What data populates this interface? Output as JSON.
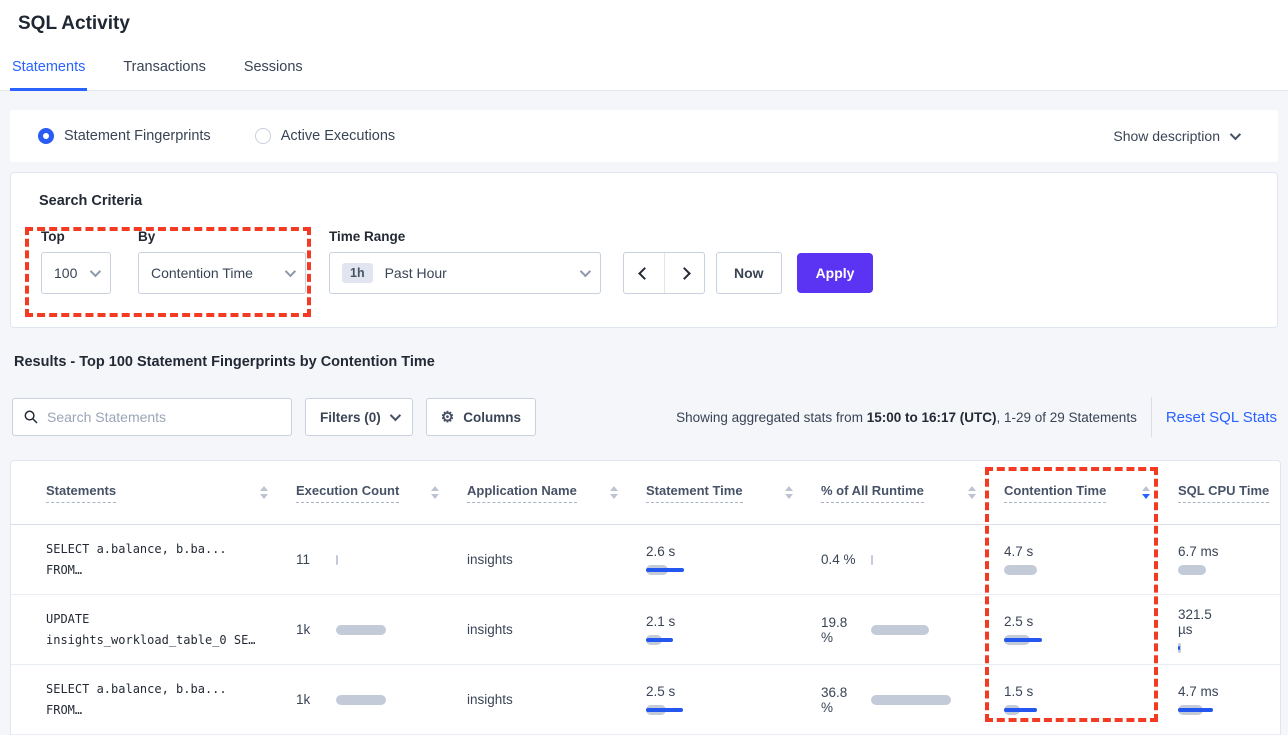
{
  "header": {
    "title": "SQL Activity",
    "tabs": [
      {
        "label": "Statements",
        "active": true
      },
      {
        "label": "Transactions",
        "active": false
      },
      {
        "label": "Sessions",
        "active": false
      }
    ]
  },
  "view_bar": {
    "fingerprints_label": "Statement Fingerprints",
    "fingerprints_selected": true,
    "active_executions_label": "Active Executions",
    "active_executions_selected": false,
    "show_description_label": "Show description"
  },
  "criteria": {
    "heading": "Search Criteria",
    "top_label": "Top",
    "top_value": "100",
    "by_label": "By",
    "by_value": "Contention Time",
    "time_range_label": "Time Range",
    "time_badge": "1h",
    "time_value": "Past Hour",
    "now_label": "Now",
    "apply_label": "Apply"
  },
  "results": {
    "heading": "Results - Top 100 Statement Fingerprints by Contention Time",
    "search_placeholder": "Search Statements",
    "filters_label": "Filters (0)",
    "columns_label": "Columns",
    "stats_prefix": "Showing aggregated stats from ",
    "stats_range": "15:00 to 16:17 (UTC)",
    "stats_suffix": ", 1-29 of 29 Statements",
    "reset_label": "Reset SQL Stats"
  },
  "table": {
    "columns": [
      "Statements",
      "Execution Count",
      "Application Name",
      "Statement Time",
      "% of All Runtime",
      "Contention Time",
      "SQL CPU Time"
    ],
    "sort": {
      "column": "Contention Time",
      "direction": "desc"
    },
    "rows": [
      {
        "statement": [
          "SELECT a.balance, b.ba...",
          "FROM…"
        ],
        "execution_count": "11",
        "application_name": "insights",
        "statement_time": "2.6 s",
        "percent_of_all_runtime": "0.4 %",
        "contention_time": "4.7 s",
        "sql_cpu_time": "6.7 ms",
        "bars": {
          "exec": 2,
          "stmt": 22,
          "stmt_line": 38,
          "pct": 2,
          "cont": 33,
          "cont_line": 0,
          "cpu": 28,
          "cpu_line": 0
        }
      },
      {
        "statement": [
          "UPDATE",
          "insights_workload_table_0 SE…"
        ],
        "execution_count": "1k",
        "application_name": "insights",
        "statement_time": "2.1 s",
        "percent_of_all_runtime": "19.8 %",
        "contention_time": "2.5 s",
        "sql_cpu_time": "321.5 µs",
        "bars": {
          "exec": 50,
          "stmt": 16,
          "stmt_line": 27,
          "pct": 58,
          "cont": 26,
          "cont_line": 38,
          "cpu": 3,
          "cpu_line": 2
        }
      },
      {
        "statement": [
          "SELECT a.balance, b.ba...",
          "FROM…"
        ],
        "execution_count": "1k",
        "application_name": "insights",
        "statement_time": "2.5 s",
        "percent_of_all_runtime": "36.8 %",
        "contention_time": "1.5 s",
        "sql_cpu_time": "4.7 ms",
        "bars": {
          "exec": 50,
          "stmt": 20,
          "stmt_line": 37,
          "pct": 80,
          "cont": 16,
          "cont_line": 33,
          "cpu": 25,
          "cpu_line": 35
        }
      }
    ]
  },
  "annotations": {
    "highlight_color": "#f23b22",
    "regions": [
      "top-and-by-selectors",
      "contention-time-column"
    ]
  },
  "colors": {
    "accent_blue": "#2962ff",
    "apply_purple": "#5b33f2",
    "bar_gray": "#c3cbd9",
    "bar_line_blue": "#2456f0",
    "page_background": "#f4f6fa"
  }
}
